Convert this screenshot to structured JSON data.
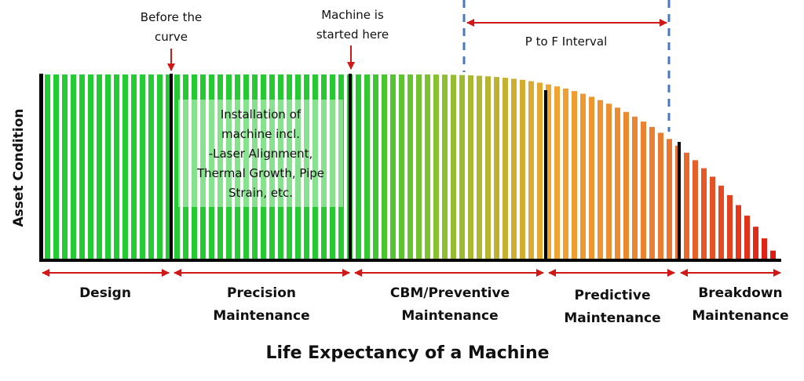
{
  "diagram": {
    "title": "Life Expectancy of a Machine",
    "y_axis_label": "Asset Condition",
    "annotations": {
      "before_curve": [
        "Before the",
        "curve"
      ],
      "machine_started": [
        "Machine is",
        "started here"
      ],
      "pf_interval": "P to F Interval",
      "installation_box": [
        "Installation of",
        "machine incl.",
        "-Laser Alignment,",
        "Thermal Growth, Pipe",
        "Strain, etc."
      ]
    },
    "phases": [
      {
        "lines": [
          "Design"
        ]
      },
      {
        "lines": [
          "Precision",
          "Maintenance"
        ]
      },
      {
        "lines": [
          "CBM/Preventive",
          "Maintenance"
        ]
      },
      {
        "lines": [
          "Predictive",
          "Maintenance"
        ]
      },
      {
        "lines": [
          "Breakdown",
          "Maintenance"
        ]
      }
    ],
    "colors": {
      "healthy": "#22cc33",
      "warning": "#f0a030",
      "failure": "#e01010",
      "arrow": "#d01818",
      "dashed": "#4a78c0",
      "divider": "#000000"
    }
  }
}
